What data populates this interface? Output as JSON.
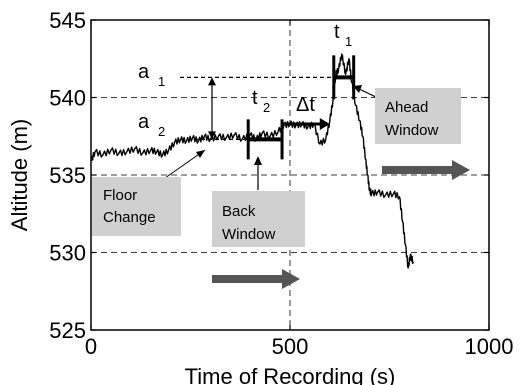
{
  "chart_data": {
    "type": "line",
    "title": "",
    "xlabel": "Time of Recording (s)",
    "ylabel": "Altitude (m)",
    "xlim": [
      0,
      1000
    ],
    "ylim": [
      525,
      545
    ],
    "xticks": [
      0,
      500,
      1000
    ],
    "yticks": [
      525,
      530,
      535,
      540,
      545
    ],
    "xtick_labels": [
      "0",
      "500",
      "1000"
    ],
    "ytick_labels": [
      "525",
      "530",
      "535",
      "540",
      "545"
    ],
    "grid": "dashed",
    "series": [
      {
        "color": "#000000",
        "points": [
          [
            0,
            535.9
          ],
          [
            10,
            536.5
          ],
          [
            30,
            536.3
          ],
          [
            50,
            536.6
          ],
          [
            70,
            536.4
          ],
          [
            90,
            536.5
          ],
          [
            110,
            536.7
          ],
          [
            130,
            536.4
          ],
          [
            150,
            536.6
          ],
          [
            165,
            536.5
          ],
          [
            180,
            536.3
          ],
          [
            195,
            536.6
          ],
          [
            210,
            537.1
          ],
          [
            225,
            537.3
          ],
          [
            240,
            537.2
          ],
          [
            255,
            537.4
          ],
          [
            270,
            537.2
          ],
          [
            285,
            537.5
          ],
          [
            300,
            537.3
          ],
          [
            320,
            537.5
          ],
          [
            340,
            537.4
          ],
          [
            360,
            537.6
          ],
          [
            380,
            537.3
          ],
          [
            400,
            537.6
          ],
          [
            415,
            537.3
          ],
          [
            430,
            537.7
          ],
          [
            450,
            537.5
          ],
          [
            470,
            537.8
          ],
          [
            485,
            538.2
          ],
          [
            500,
            538.3
          ],
          [
            515,
            538.2
          ],
          [
            530,
            538.3
          ],
          [
            545,
            538.1
          ],
          [
            560,
            538.3
          ],
          [
            575,
            537.0
          ],
          [
            590,
            537.3
          ],
          [
            600,
            538.5
          ],
          [
            608,
            539.8
          ],
          [
            615,
            541.5
          ],
          [
            622,
            541.8
          ],
          [
            630,
            542.8
          ],
          [
            640,
            541.5
          ],
          [
            648,
            542.5
          ],
          [
            655,
            541.0
          ],
          [
            665,
            539.5
          ],
          [
            675,
            538.5
          ],
          [
            683,
            537.5
          ],
          [
            690,
            536.0
          ],
          [
            695,
            535.0
          ],
          [
            700,
            534.0
          ],
          [
            705,
            533.8
          ],
          [
            720,
            533.9
          ],
          [
            740,
            533.7
          ],
          [
            760,
            533.8
          ],
          [
            775,
            533.6
          ],
          [
            783,
            532.0
          ],
          [
            790,
            530.5
          ],
          [
            797,
            529.0
          ],
          [
            802,
            529.8
          ],
          [
            810,
            529.4
          ]
        ]
      }
    ],
    "annotations": {
      "a1_label": "a",
      "a1_sub": "1",
      "a2_label": "a",
      "a2_sub": "2",
      "t1_label": "t",
      "t1_sub": "1",
      "t2_label": "t",
      "t2_sub": "2",
      "delta_t_label": "Δt",
      "floor_change_line1": "Floor",
      "floor_change_line2": "Change",
      "back_window_line1": "Back",
      "back_window_line2": "Window",
      "ahead_window_line1": "Ahead",
      "ahead_window_line2": "Window",
      "a1_level": 541.3,
      "a2_level": 537.3,
      "t1_window": [
        610,
        660
      ],
      "t2_window": [
        395,
        480
      ],
      "delta_t_range": [
        480,
        600
      ]
    }
  }
}
